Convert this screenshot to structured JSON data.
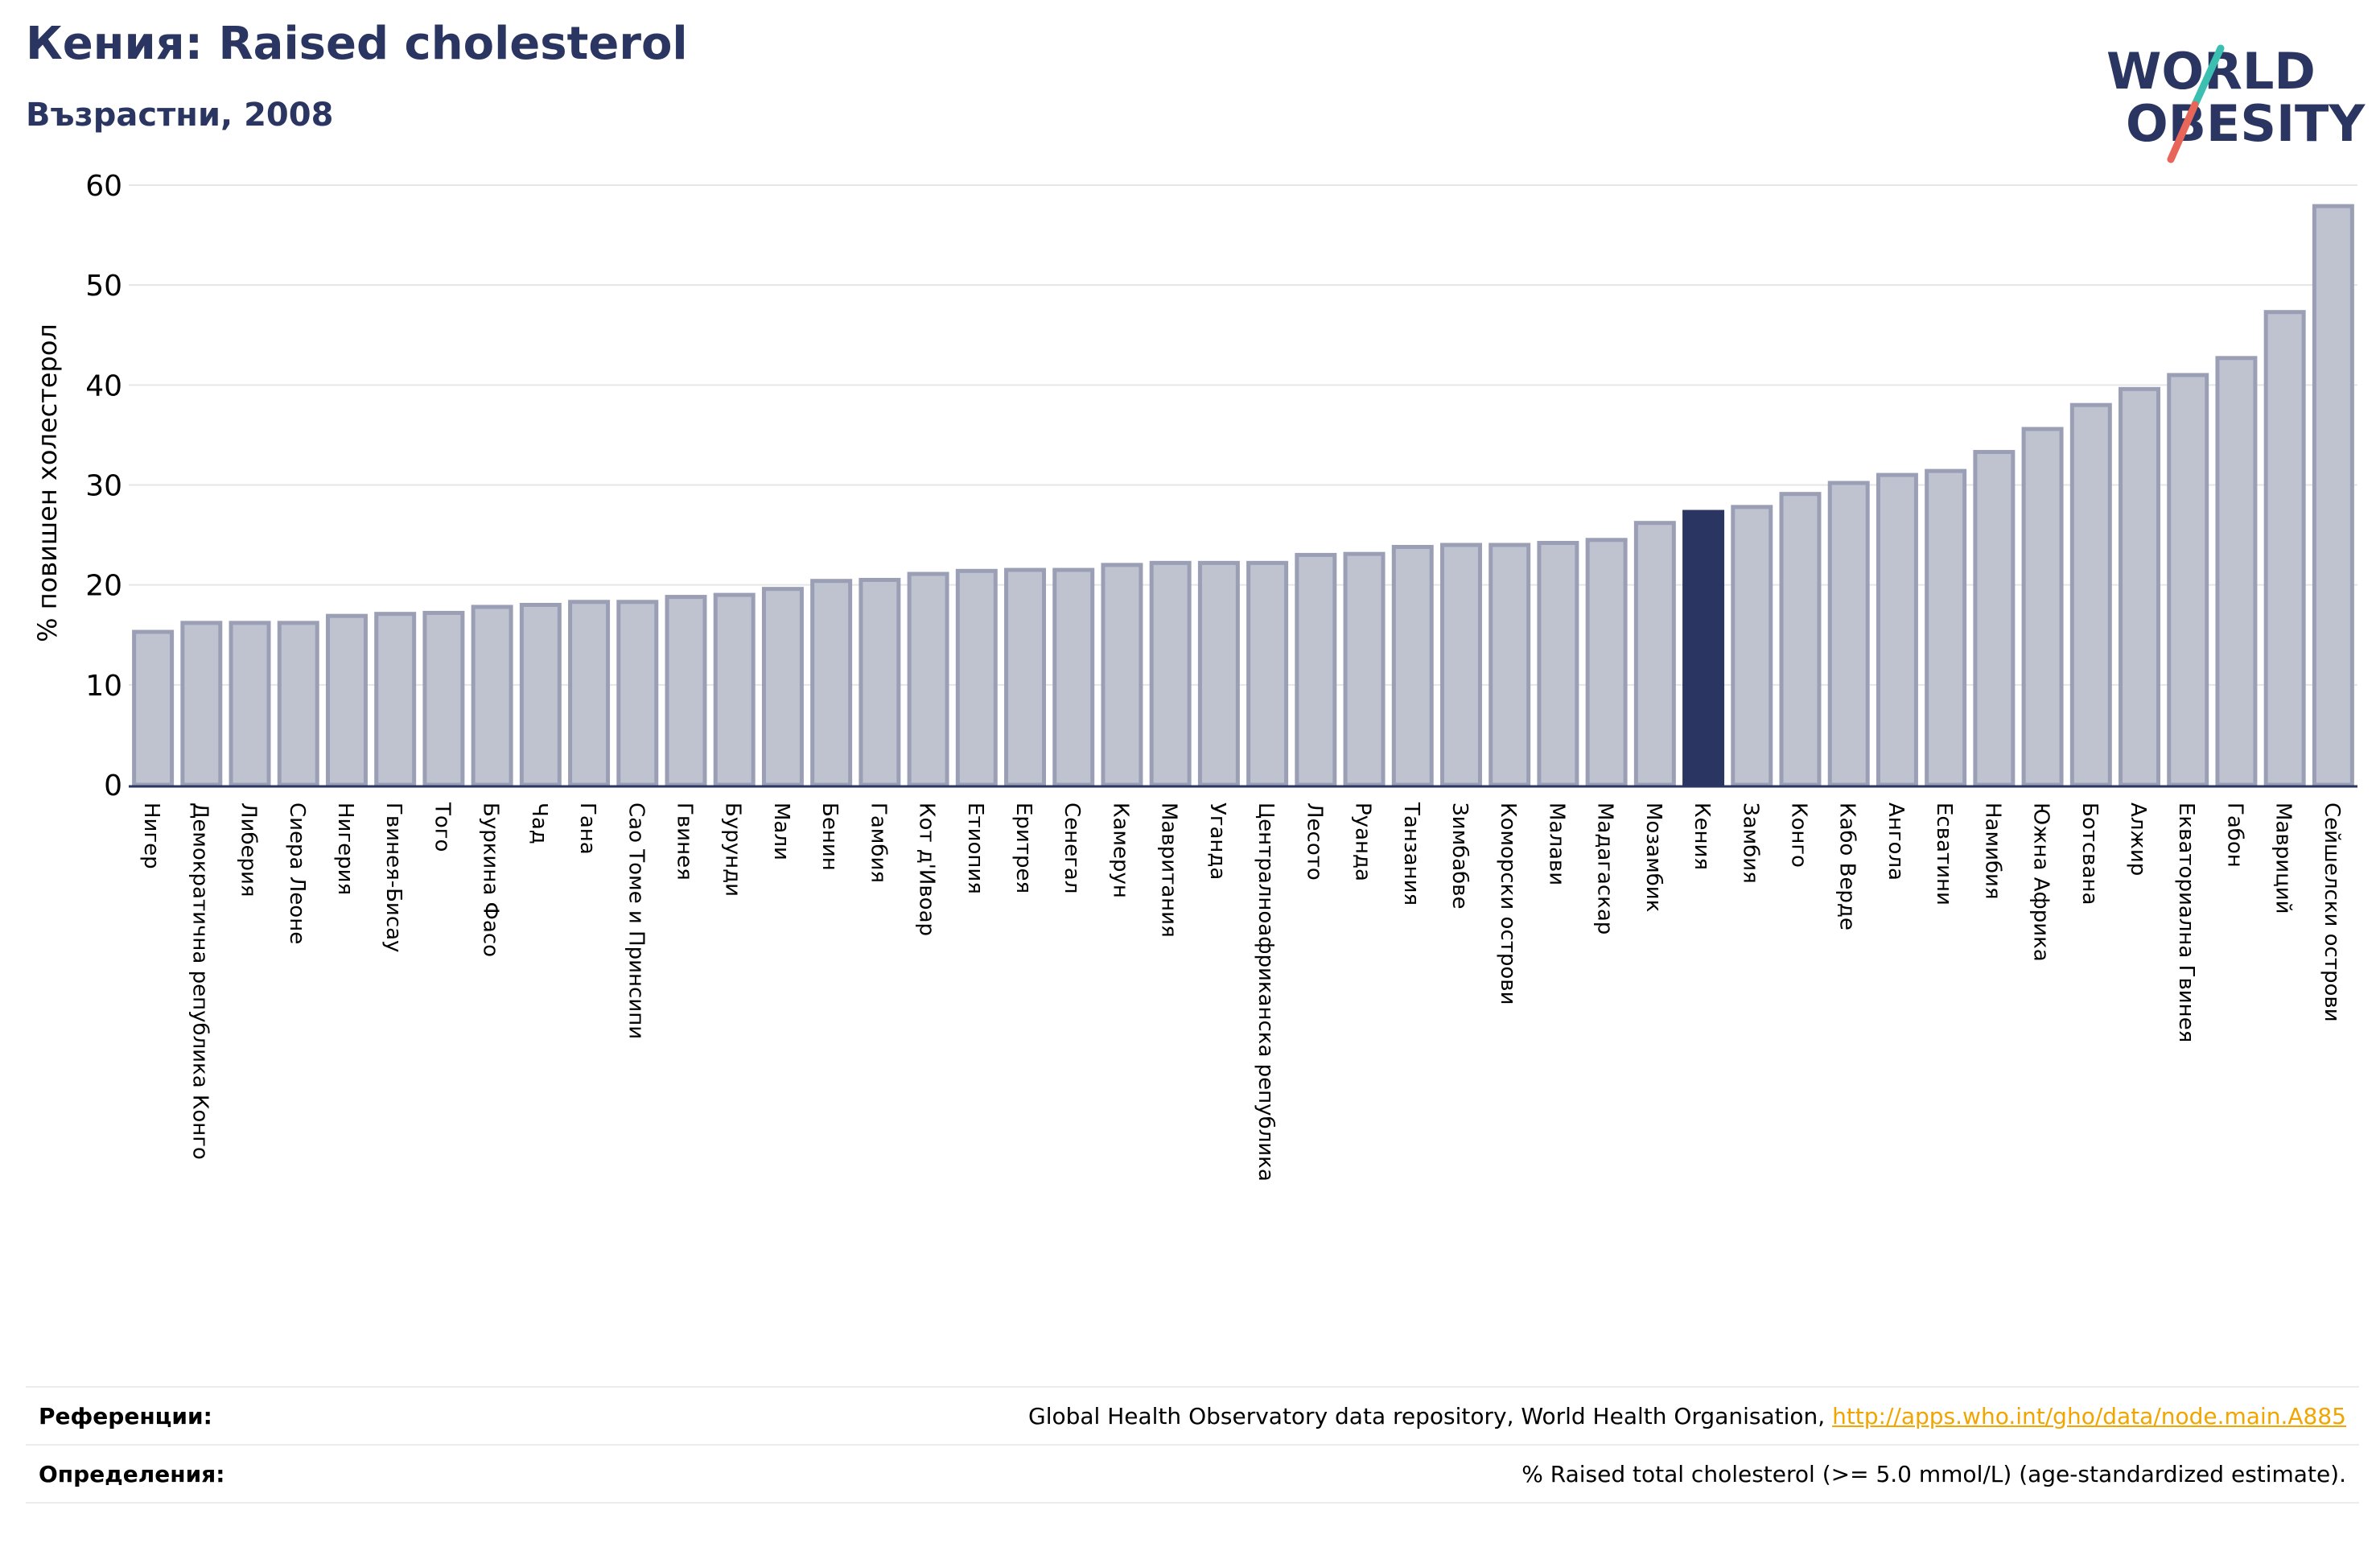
{
  "header": {
    "title": "Кения: Raised cholesterol",
    "subtitle": "Възрастни, 2008"
  },
  "logo": {
    "line1": "WORLD",
    "line2": "OBESITY",
    "slash_color_top": "#3bbfb0",
    "slash_color_bottom": "#e8655a",
    "text_color": "#2a3561"
  },
  "colors": {
    "bar_default": "#bfc2cf",
    "bar_border": "#9a9fb6",
    "bar_highlight": "#2a3561",
    "axis": "#2a3561",
    "grid": "#e6e6e6"
  },
  "chart_data": {
    "type": "bar",
    "title": "Кения: Raised cholesterol",
    "subtitle": "Възрастни, 2008",
    "ylabel": "% повишен холестерол",
    "xlabel": "",
    "ylim": [
      0,
      60
    ],
    "yticks": [
      0,
      10,
      20,
      30,
      40,
      50,
      60
    ],
    "grid": true,
    "highlight": "Кения",
    "categories": [
      "Нигер",
      "Демократична република Конго",
      "Либерия",
      "Сиера Леоне",
      "Нигерия",
      "Гвинея-Бисау",
      "Того",
      "Буркина Фасо",
      "Чад",
      "Гана",
      "Сао Томе и Принсипи",
      "Гвинея",
      "Бурунди",
      "Мали",
      "Бенин",
      "Гамбия",
      "Кот д'Ивоар",
      "Етиопия",
      "Еритрея",
      "Сенегал",
      "Камерун",
      "Мавритания",
      "Уганда",
      "Централноафриканска република",
      "Лесото",
      "Руанда",
      "Танзания",
      "Зимбабве",
      "Коморски острови",
      "Малави",
      "Мадагаскар",
      "Мозамбик",
      "Кения",
      "Замбия",
      "Конго",
      "Кабо Верде",
      "Ангола",
      "Есватини",
      "Намибия",
      "Южна Африка",
      "Ботсвана",
      "Алжир",
      "Екваториална Гвинея",
      "Габон",
      "Мавриций",
      "Сейшелски острови"
    ],
    "values": [
      15.3,
      16.2,
      16.2,
      16.2,
      16.9,
      17.1,
      17.2,
      17.8,
      18.0,
      18.3,
      18.3,
      18.8,
      19.0,
      19.6,
      20.4,
      20.5,
      21.1,
      21.4,
      21.5,
      21.5,
      22.0,
      22.2,
      22.2,
      22.2,
      23.0,
      23.1,
      23.8,
      24.0,
      24.0,
      24.2,
      24.5,
      26.2,
      27.3,
      27.8,
      29.1,
      30.2,
      31.0,
      31.4,
      33.3,
      35.6,
      38.0,
      39.6,
      41.0,
      42.7,
      47.3,
      57.9
    ]
  },
  "references": {
    "sources_label": "Референции:",
    "sources_text": "Global Health Observatory data repository, World Health Organisation, ",
    "sources_link": "http://apps.who.int/gho/data/node.main.A885",
    "definitions_label": "Определения:",
    "definitions_text": "% Raised total cholesterol (>= 5.0 mmol/L) (age-standardized estimate)."
  }
}
